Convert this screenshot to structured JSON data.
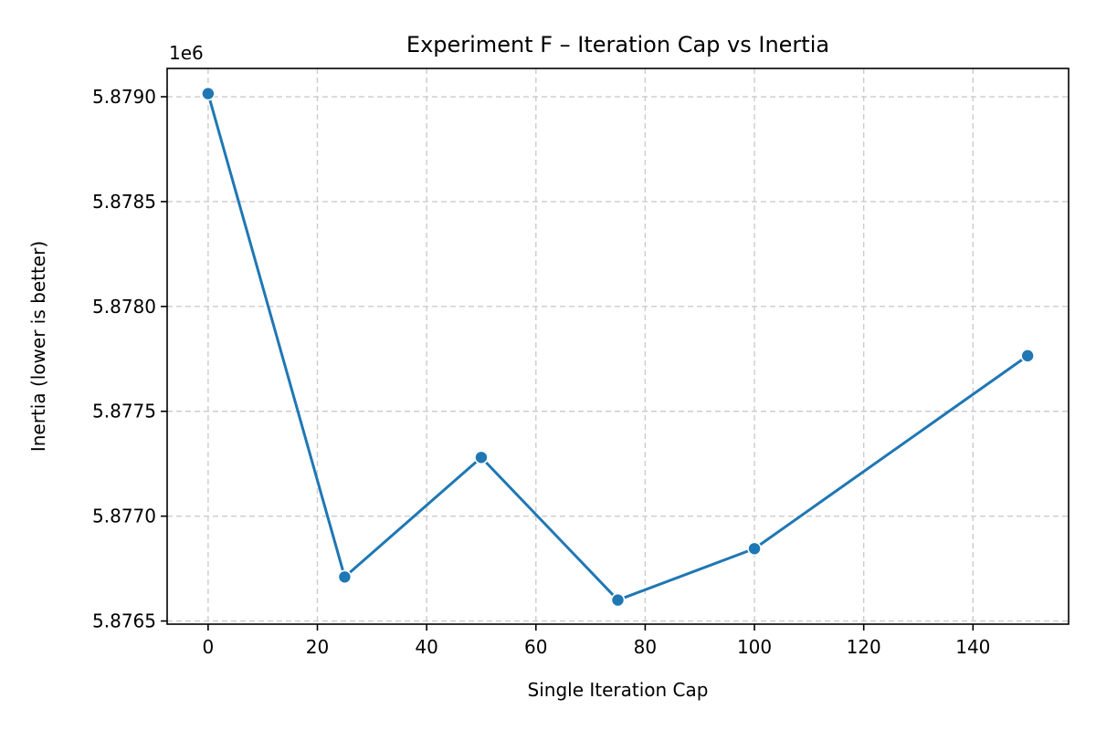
{
  "chart_data": {
    "type": "line",
    "title": "Experiment F – Iteration Cap vs Inertia",
    "xlabel": "Single Iteration Cap",
    "ylabel": "Inertia (lower is better)",
    "y_offset_label": "1e6",
    "xlim": [
      -7.5,
      157.5
    ],
    "ylim": [
      5876485,
      5879135
    ],
    "x_ticks": [
      0,
      20,
      40,
      60,
      80,
      100,
      120,
      140
    ],
    "x_tick_labels": [
      "0",
      "20",
      "40",
      "60",
      "80",
      "100",
      "120",
      "140"
    ],
    "y_ticks": [
      5876500,
      5877000,
      5877500,
      5878000,
      5878500,
      5879000
    ],
    "y_tick_labels": [
      "5.8765",
      "5.8770",
      "5.8775",
      "5.8780",
      "5.8785",
      "5.8790"
    ],
    "grid": true,
    "series": [
      {
        "x": [
          0,
          25,
          50,
          75,
          100,
          150
        ],
        "y": [
          5879015,
          5876710,
          5877280,
          5876600,
          5876845,
          5877765
        ],
        "color": "#1f77b4",
        "marker": "circle"
      }
    ]
  }
}
